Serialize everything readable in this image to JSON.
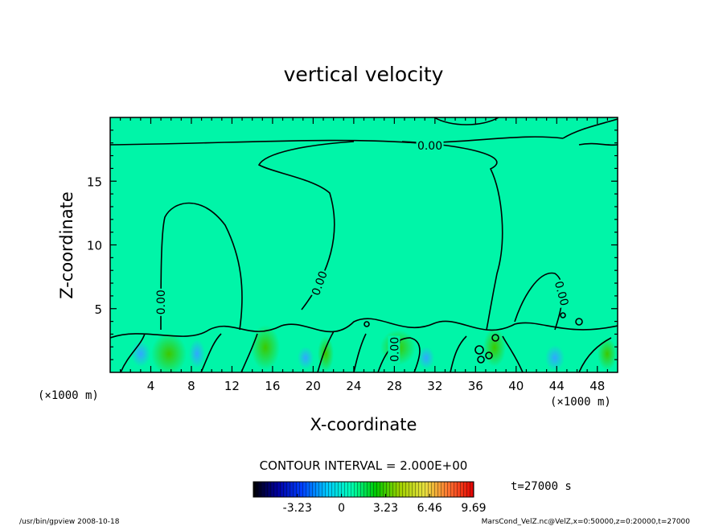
{
  "chart_data": {
    "type": "heatmap",
    "title": "vertical velocity",
    "xlabel": "X-coordinate",
    "ylabel": "Z-coordinate",
    "x_unit": "(×1000 m)",
    "x_unit_left": "(×1000 m)",
    "xlim": [
      0,
      50
    ],
    "ylim": [
      0,
      20
    ],
    "x_ticks": [
      "4",
      "8",
      "12",
      "16",
      "20",
      "24",
      "28",
      "32",
      "36",
      "40",
      "44",
      "48"
    ],
    "y_ticks": [
      "5",
      "10",
      "15"
    ],
    "contour_labels": [
      {
        "text": "0.00",
        "x": 31.5,
        "y": 17.8,
        "angle": 0
      },
      {
        "text": "0.00",
        "x": 5.0,
        "y": 5.5,
        "angle": -90
      },
      {
        "text": "0.00",
        "x": 20.6,
        "y": 7.0,
        "angle": -70
      },
      {
        "text": "0.00",
        "x": 28.0,
        "y": 1.8,
        "angle": -90
      },
      {
        "text": "0.00",
        "x": 44.5,
        "y": 6.2,
        "angle": 75
      }
    ],
    "contour_interval": "CONTOUR INTERVAL = 2.000E+00",
    "colorbar": {
      "ticks": [
        "-3.23",
        "0",
        "3.23",
        "6.46",
        "9.69"
      ],
      "min": -6.46,
      "max": 9.69,
      "colors": [
        "#000000",
        "#0000a0",
        "#0040ff",
        "#00c8ff",
        "#00ffb4",
        "#00c800",
        "#a0d000",
        "#e8e040",
        "#ff7030",
        "#e00000"
      ]
    },
    "background_color": "#00f5a8",
    "time_label": "t=27000 s"
  },
  "footer": {
    "left": "/usr/bin/gpview   2008-10-18",
    "right": "MarsCond_VelZ.nc@VelZ,x=0:50000,z=0:20000,t=27000"
  }
}
